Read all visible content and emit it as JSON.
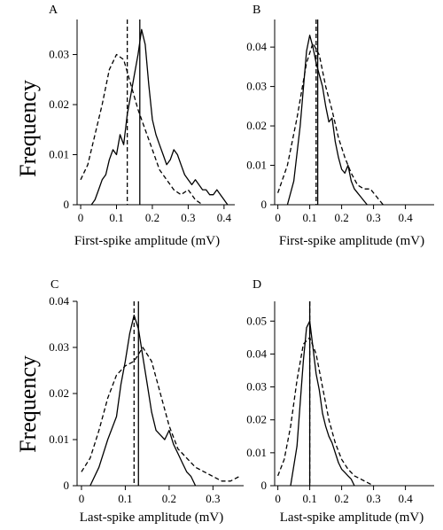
{
  "ylabel": "Frequency",
  "chart_data": [
    {
      "panel": "A",
      "type": "line",
      "xlabel": "First-spike amplitude (mV)",
      "ylabel": "Frequency",
      "xlim": [
        -0.01,
        0.43
      ],
      "ylim": [
        0,
        0.037
      ],
      "xticks": [
        "0",
        "0.1",
        "0.2",
        "0.3",
        "0.4"
      ],
      "xtick_values": [
        0,
        0.1,
        0.2,
        0.3,
        0.4
      ],
      "yticks": [
        "0",
        "0.01",
        "0.02",
        "0.03"
      ],
      "ytick_values": [
        0,
        0.01,
        0.02,
        0.03
      ],
      "series": [
        {
          "style": "solid",
          "x": [
            0.03,
            0.04,
            0.05,
            0.06,
            0.07,
            0.08,
            0.09,
            0.1,
            0.11,
            0.12,
            0.13,
            0.14,
            0.15,
            0.16,
            0.17,
            0.18,
            0.19,
            0.2,
            0.21,
            0.22,
            0.23,
            0.24,
            0.25,
            0.26,
            0.27,
            0.28,
            0.29,
            0.3,
            0.31,
            0.32,
            0.33,
            0.34,
            0.35,
            0.36,
            0.37,
            0.38,
            0.39,
            0.4,
            0.41
          ],
          "values": [
            0.0,
            0.001,
            0.003,
            0.005,
            0.006,
            0.009,
            0.011,
            0.01,
            0.014,
            0.012,
            0.018,
            0.022,
            0.026,
            0.03,
            0.035,
            0.032,
            0.024,
            0.017,
            0.014,
            0.012,
            0.01,
            0.008,
            0.009,
            0.011,
            0.01,
            0.008,
            0.006,
            0.005,
            0.004,
            0.005,
            0.004,
            0.003,
            0.003,
            0.002,
            0.002,
            0.003,
            0.002,
            0.001,
            0.0
          ]
        },
        {
          "style": "dashed",
          "x": [
            0.0,
            0.02,
            0.04,
            0.06,
            0.08,
            0.1,
            0.12,
            0.14,
            0.16,
            0.18,
            0.2,
            0.22,
            0.24,
            0.26,
            0.28,
            0.3,
            0.32,
            0.34
          ],
          "values": [
            0.005,
            0.008,
            0.014,
            0.02,
            0.027,
            0.03,
            0.029,
            0.024,
            0.019,
            0.015,
            0.011,
            0.007,
            0.005,
            0.003,
            0.002,
            0.003,
            0.001,
            0.0
          ]
        }
      ],
      "markers": [
        {
          "style": "solid",
          "x": 0.165
        },
        {
          "style": "dashed",
          "x": 0.13
        }
      ]
    },
    {
      "panel": "B",
      "type": "line",
      "xlabel": "First-spike amplitude (mV)",
      "ylabel": "Frequency",
      "xlim": [
        -0.01,
        0.49
      ],
      "ylim": [
        0,
        0.047
      ],
      "xticks": [
        "0",
        "0.1",
        "0.2",
        "0.3",
        "0.4"
      ],
      "xtick_values": [
        0,
        0.1,
        0.2,
        0.3,
        0.4
      ],
      "yticks": [
        "0",
        "0.01",
        "0.02",
        "0.03",
        "0.04"
      ],
      "ytick_values": [
        0,
        0.01,
        0.02,
        0.03,
        0.04
      ],
      "series": [
        {
          "style": "solid",
          "x": [
            0.03,
            0.05,
            0.07,
            0.09,
            0.1,
            0.11,
            0.12,
            0.13,
            0.14,
            0.15,
            0.16,
            0.17,
            0.18,
            0.19,
            0.2,
            0.21,
            0.22,
            0.23,
            0.24,
            0.25,
            0.26,
            0.27,
            0.28
          ],
          "values": [
            0.0,
            0.006,
            0.02,
            0.039,
            0.043,
            0.04,
            0.036,
            0.033,
            0.03,
            0.025,
            0.021,
            0.022,
            0.016,
            0.012,
            0.009,
            0.008,
            0.01,
            0.006,
            0.004,
            0.003,
            0.002,
            0.001,
            0.0
          ]
        },
        {
          "style": "dashed",
          "x": [
            0.0,
            0.03,
            0.06,
            0.09,
            0.11,
            0.13,
            0.15,
            0.17,
            0.19,
            0.21,
            0.23,
            0.25,
            0.27,
            0.29,
            0.31,
            0.33
          ],
          "values": [
            0.003,
            0.01,
            0.022,
            0.036,
            0.041,
            0.038,
            0.03,
            0.024,
            0.017,
            0.012,
            0.008,
            0.005,
            0.004,
            0.004,
            0.002,
            0.0
          ]
        }
      ],
      "markers": [
        {
          "style": "solid",
          "x": 0.125
        },
        {
          "style": "dashed",
          "x": 0.12
        }
      ]
    },
    {
      "panel": "C",
      "type": "line",
      "xlabel": "Last-spike amplitude (mV)",
      "ylabel": "Frequency",
      "xlim": [
        -0.01,
        0.37
      ],
      "ylim": [
        0,
        0.04
      ],
      "xticks": [
        "0",
        "0.1",
        "0.2",
        "0.3"
      ],
      "xtick_values": [
        0,
        0.1,
        0.2,
        0.3
      ],
      "yticks": [
        "0",
        "0.01",
        "0.02",
        "0.03",
        "0.04"
      ],
      "ytick_values": [
        0,
        0.01,
        0.02,
        0.03,
        0.04
      ],
      "series": [
        {
          "style": "solid",
          "x": [
            0.02,
            0.04,
            0.06,
            0.08,
            0.09,
            0.1,
            0.11,
            0.12,
            0.13,
            0.14,
            0.15,
            0.16,
            0.17,
            0.18,
            0.19,
            0.2,
            0.21,
            0.22,
            0.23,
            0.24,
            0.25,
            0.26
          ],
          "values": [
            0.0,
            0.004,
            0.01,
            0.015,
            0.022,
            0.027,
            0.033,
            0.037,
            0.034,
            0.028,
            0.022,
            0.016,
            0.012,
            0.011,
            0.01,
            0.012,
            0.009,
            0.007,
            0.005,
            0.003,
            0.002,
            0.0
          ]
        },
        {
          "style": "dashed",
          "x": [
            0.0,
            0.02,
            0.04,
            0.06,
            0.08,
            0.1,
            0.12,
            0.14,
            0.16,
            0.18,
            0.2,
            0.22,
            0.24,
            0.26,
            0.28,
            0.3,
            0.32,
            0.34,
            0.36
          ],
          "values": [
            0.003,
            0.006,
            0.012,
            0.019,
            0.024,
            0.026,
            0.027,
            0.03,
            0.027,
            0.02,
            0.013,
            0.008,
            0.006,
            0.004,
            0.003,
            0.002,
            0.001,
            0.001,
            0.002
          ]
        }
      ],
      "markers": [
        {
          "style": "solid",
          "x": 0.13
        },
        {
          "style": "dashed",
          "x": 0.12
        }
      ]
    },
    {
      "panel": "D",
      "type": "line",
      "xlabel": "Last-spike amplitude (mV)",
      "ylabel": "Frequency",
      "xlim": [
        -0.01,
        0.49
      ],
      "ylim": [
        0,
        0.056
      ],
      "xticks": [
        "0",
        "0.1",
        "0.2",
        "0.3",
        "0.4"
      ],
      "xtick_values": [
        0,
        0.1,
        0.2,
        0.3,
        0.4
      ],
      "yticks": [
        "0",
        "0.01",
        "0.02",
        "0.03",
        "0.04",
        "0.05"
      ],
      "ytick_values": [
        0,
        0.01,
        0.02,
        0.03,
        0.04,
        0.05
      ],
      "series": [
        {
          "style": "solid",
          "x": [
            0.04,
            0.06,
            0.07,
            0.08,
            0.09,
            0.1,
            0.11,
            0.12,
            0.13,
            0.14,
            0.15,
            0.16,
            0.17,
            0.18,
            0.19,
            0.2,
            0.21,
            0.22,
            0.23,
            0.24
          ],
          "values": [
            0.0,
            0.012,
            0.025,
            0.038,
            0.048,
            0.05,
            0.042,
            0.034,
            0.029,
            0.022,
            0.018,
            0.015,
            0.013,
            0.01,
            0.007,
            0.005,
            0.004,
            0.003,
            0.002,
            0.0
          ]
        },
        {
          "style": "dashed",
          "x": [
            0.0,
            0.02,
            0.04,
            0.06,
            0.08,
            0.1,
            0.12,
            0.14,
            0.16,
            0.18,
            0.2,
            0.22,
            0.24,
            0.26,
            0.28,
            0.3
          ],
          "values": [
            0.003,
            0.008,
            0.018,
            0.032,
            0.043,
            0.045,
            0.04,
            0.03,
            0.02,
            0.013,
            0.008,
            0.005,
            0.003,
            0.002,
            0.001,
            0.0
          ]
        }
      ],
      "markers": [
        {
          "style": "solid",
          "x": 0.1
        },
        {
          "style": "dashed",
          "x": 0.1
        }
      ]
    }
  ]
}
